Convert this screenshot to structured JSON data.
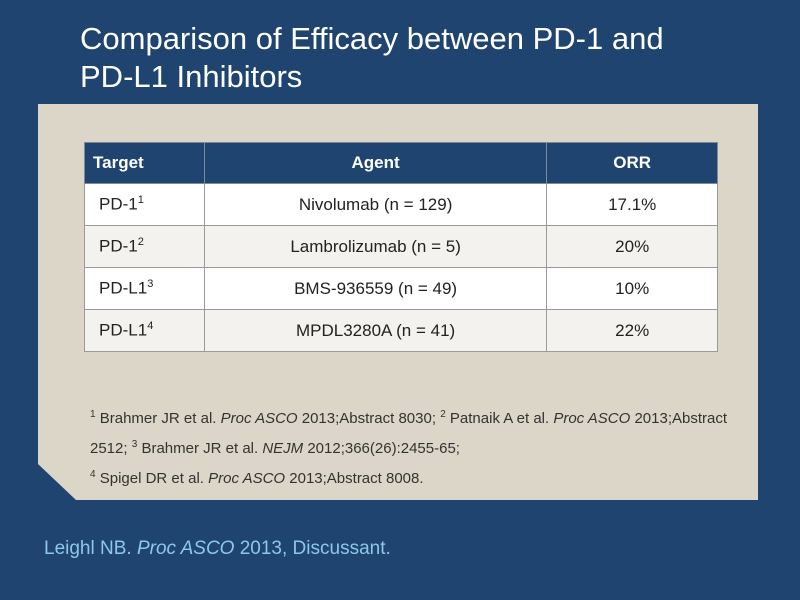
{
  "title": {
    "line1": "Comparison of Efficacy between PD-1 and",
    "line2": "PD-L1 Inhibitors"
  },
  "table": {
    "headers": {
      "target": "Target",
      "agent": "Agent",
      "orr": "ORR"
    },
    "rows": [
      {
        "target": "PD-1",
        "ref": "1",
        "agent": "Nivolumab (n = 129)",
        "orr": "17.1%"
      },
      {
        "target": "PD-1",
        "ref": "2",
        "agent": "Lambrolizumab (n = 5)",
        "orr": "20%"
      },
      {
        "target": "PD-L1",
        "ref": "3",
        "agent": "BMS-936559 (n = 49)",
        "orr": "10%"
      },
      {
        "target": "PD-L1",
        "ref": "4",
        "agent": "MPDL3280A (n = 41)",
        "orr": "22%"
      }
    ]
  },
  "references": {
    "r1": {
      "num": "1",
      "authors": "Brahmer JR et al. ",
      "journal": "Proc ASCO",
      "detail": " 2013;Abstract 8030; "
    },
    "r2": {
      "num": "2",
      "authors": "Patnaik A et al. ",
      "journal": "Proc ASCO",
      "detail": " 2013;Abstract 2512; "
    },
    "r3": {
      "num": "3",
      "authors": "Brahmer JR et al. ",
      "journal": "NEJM",
      "detail": " 2012;366(26):2455-65;"
    },
    "r4": {
      "num": "4",
      "authors": "Spigel DR et al. ",
      "journal": "Proc ASCO",
      "detail": " 2013;Abstract 8008."
    }
  },
  "footer": {
    "author": "Leighl NB. ",
    "journal": "Proc ASCO",
    "detail": " 2013, Discussant."
  },
  "colors": {
    "background": "#1f4470",
    "panel": "#dcd6c9",
    "header_fill": "#1f4470",
    "footer_text": "#8fc7e8"
  }
}
